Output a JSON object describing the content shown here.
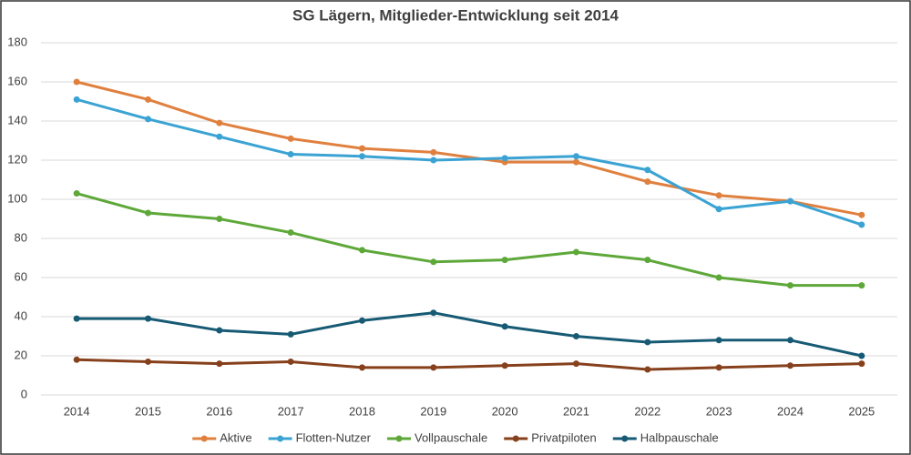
{
  "chart_data": {
    "type": "line",
    "title": "SG Lägern, Mitglieder-Entwicklung seit 2014",
    "categories": [
      "2014",
      "2015",
      "2016",
      "2017",
      "2018",
      "2019",
      "2020",
      "2021",
      "2022",
      "2023",
      "2024",
      "2025"
    ],
    "series": [
      {
        "name": "Aktive",
        "color": "#e0803f",
        "values": [
          160,
          151,
          139,
          131,
          126,
          124,
          119,
          119,
          109,
          102,
          99,
          92
        ]
      },
      {
        "name": "Flotten-Nutzer",
        "color": "#3ba3d3",
        "values": [
          151,
          141,
          132,
          123,
          122,
          120,
          121,
          122,
          115,
          95,
          99,
          87
        ]
      },
      {
        "name": "Vollpauschale",
        "color": "#5ea83a",
        "values": [
          103,
          93,
          90,
          83,
          74,
          68,
          69,
          73,
          69,
          60,
          56,
          56
        ]
      },
      {
        "name": "Privatpiloten",
        "color": "#86401c",
        "values": [
          18,
          17,
          16,
          17,
          14,
          14,
          15,
          16,
          13,
          14,
          15,
          16
        ]
      },
      {
        "name": "Halbpauschale",
        "color": "#175a74",
        "values": [
          39,
          39,
          33,
          31,
          38,
          42,
          35,
          30,
          27,
          28,
          28,
          20
        ]
      }
    ],
    "ylim": [
      0,
      180
    ],
    "yticks": [
      0,
      20,
      40,
      60,
      80,
      100,
      120,
      140,
      160,
      180
    ],
    "grid": true,
    "legend": "bottom"
  }
}
